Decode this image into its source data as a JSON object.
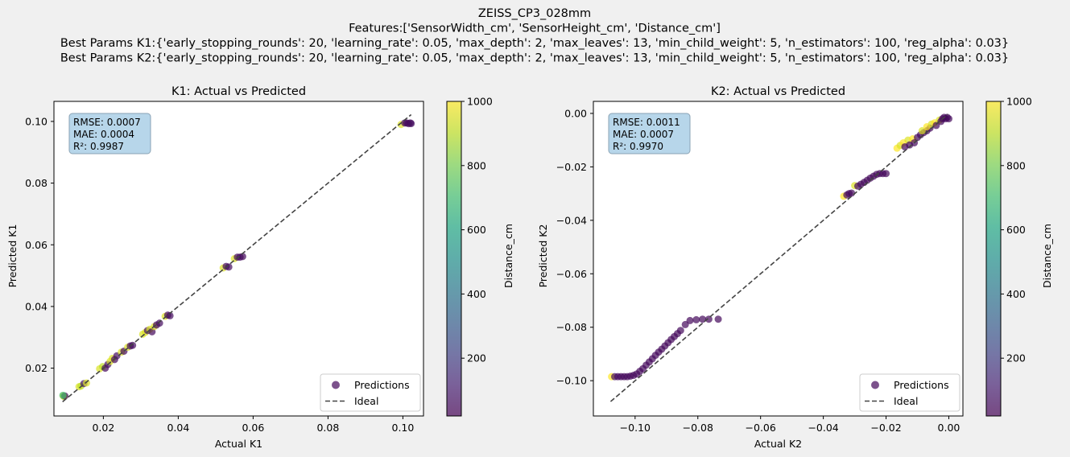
{
  "figure": {
    "title_lines": [
      "ZEISS_CP3_028mm",
      "Features:['SensorWidth_cm', 'SensorHeight_cm', 'Distance_cm']",
      "Best Params K1:{'early_stopping_rounds': 20, 'learning_rate': 0.05, 'max_depth': 2, 'max_leaves': 13, 'min_child_weight': 5, 'n_estimators': 100, 'reg_alpha': 0.03}",
      "Best Params K2:{'early_stopping_rounds': 20, 'learning_rate': 0.05, 'max_depth': 2, 'max_leaves': 13, 'min_child_weight': 5, 'n_estimators': 100, 'reg_alpha': 0.03}"
    ],
    "colors": {
      "background": "#f0f0f0",
      "axes_face": "#ffffff",
      "ideal_line": "#444444",
      "stats_box_fill": "#b7d6ea",
      "stats_box_edge": "#8aa3b5"
    }
  },
  "chart_data": [
    {
      "type": "scatter",
      "title": "K1: Actual vs Predicted",
      "xlabel": "Actual K1",
      "ylabel": "Predicted K1",
      "xlim": [
        0.0068,
        0.1055
      ],
      "ylim": [
        0.0045,
        0.1065
      ],
      "xticks": [
        0.02,
        0.04,
        0.06,
        0.08,
        0.1
      ],
      "xtick_labels": [
        "0.02",
        "0.04",
        "0.06",
        "0.08",
        "0.10"
      ],
      "yticks": [
        0.02,
        0.04,
        0.06,
        0.08,
        0.1
      ],
      "ytick_labels": [
        "0.02",
        "0.04",
        "0.06",
        "0.08",
        "0.10"
      ],
      "grid": false,
      "legend": {
        "placement": "lower-right",
        "entries": [
          "Predictions",
          "Ideal"
        ]
      },
      "stats": [
        "RMSE: 0.0007",
        "MAE: 0.0004",
        "R²: 0.9987"
      ],
      "ideal_line": {
        "x": [
          0.0091,
          0.1022
        ],
        "y": [
          0.0091,
          0.1022
        ]
      },
      "colorbar": {
        "label": "Distance_cm",
        "range": [
          20,
          1000
        ],
        "ticks": [
          200,
          400,
          600,
          800,
          1000
        ],
        "tick_labels": [
          "200",
          "400",
          "600",
          "800",
          "1000"
        ],
        "colormap": "viridis"
      },
      "series": [
        {
          "name": "Predictions",
          "marker_alpha": 0.7,
          "points": [
            {
              "x": 0.0093,
              "y": 0.011,
              "c": 1000
            },
            {
              "x": 0.0095,
              "y": 0.0108,
              "c": 900
            },
            {
              "x": 0.0097,
              "y": 0.011,
              "c": 60
            },
            {
              "x": 0.0092,
              "y": 0.0112,
              "c": 700
            },
            {
              "x": 0.0135,
              "y": 0.014,
              "c": 950
            },
            {
              "x": 0.014,
              "y": 0.0142,
              "c": 900
            },
            {
              "x": 0.0148,
              "y": 0.015,
              "c": 80
            },
            {
              "x": 0.0155,
              "y": 0.0152,
              "c": 950
            },
            {
              "x": 0.019,
              "y": 0.0198,
              "c": 950
            },
            {
              "x": 0.0198,
              "y": 0.0205,
              "c": 900
            },
            {
              "x": 0.0205,
              "y": 0.02,
              "c": 40
            },
            {
              "x": 0.0212,
              "y": 0.0212,
              "c": 50
            },
            {
              "x": 0.0218,
              "y": 0.0222,
              "c": 950
            },
            {
              "x": 0.0224,
              "y": 0.0232,
              "c": 950
            },
            {
              "x": 0.023,
              "y": 0.0228,
              "c": 40
            },
            {
              "x": 0.0236,
              "y": 0.024,
              "c": 60
            },
            {
              "x": 0.0248,
              "y": 0.0252,
              "c": 950
            },
            {
              "x": 0.0255,
              "y": 0.0255,
              "c": 40
            },
            {
              "x": 0.0265,
              "y": 0.0268,
              "c": 950
            },
            {
              "x": 0.0272,
              "y": 0.0272,
              "c": 40
            },
            {
              "x": 0.0278,
              "y": 0.0274,
              "c": 50
            },
            {
              "x": 0.0305,
              "y": 0.031,
              "c": 950
            },
            {
              "x": 0.0312,
              "y": 0.0316,
              "c": 950
            },
            {
              "x": 0.0318,
              "y": 0.0322,
              "c": 60
            },
            {
              "x": 0.0324,
              "y": 0.0326,
              "c": 950
            },
            {
              "x": 0.033,
              "y": 0.0318,
              "c": 40
            },
            {
              "x": 0.0336,
              "y": 0.0335,
              "c": 950
            },
            {
              "x": 0.0342,
              "y": 0.034,
              "c": 40
            },
            {
              "x": 0.035,
              "y": 0.0346,
              "c": 50
            },
            {
              "x": 0.0365,
              "y": 0.0368,
              "c": 950
            },
            {
              "x": 0.0372,
              "y": 0.0372,
              "c": 40
            },
            {
              "x": 0.0378,
              "y": 0.037,
              "c": 50
            },
            {
              "x": 0.052,
              "y": 0.0525,
              "c": 950
            },
            {
              "x": 0.0528,
              "y": 0.053,
              "c": 40
            },
            {
              "x": 0.0535,
              "y": 0.0528,
              "c": 50
            },
            {
              "x": 0.055,
              "y": 0.0555,
              "c": 950
            },
            {
              "x": 0.0558,
              "y": 0.056,
              "c": 40
            },
            {
              "x": 0.0565,
              "y": 0.056,
              "c": 50
            },
            {
              "x": 0.0572,
              "y": 0.0562,
              "c": 40
            },
            {
              "x": 0.0995,
              "y": 0.099,
              "c": 950
            },
            {
              "x": 0.1005,
              "y": 0.0995,
              "c": 40
            },
            {
              "x": 0.101,
              "y": 0.0995,
              "c": 40
            },
            {
              "x": 0.1015,
              "y": 0.0993,
              "c": 50
            },
            {
              "x": 0.102,
              "y": 0.0995,
              "c": 40
            },
            {
              "x": 0.1022,
              "y": 0.0993,
              "c": 60
            }
          ]
        }
      ]
    },
    {
      "type": "scatter",
      "title": "K2: Actual vs Predicted",
      "xlabel": "Actual K2",
      "ylabel": "Predicted K2",
      "xlim": [
        -0.1133,
        0.0045
      ],
      "ylim": [
        -0.1132,
        0.0045
      ],
      "xticks": [
        -0.1,
        -0.08,
        -0.06,
        -0.04,
        -0.02,
        0.0
      ],
      "xtick_labels": [
        "−0.10",
        "−0.08",
        "−0.06",
        "−0.04",
        "−0.02",
        "0.00"
      ],
      "yticks": [
        -0.1,
        -0.08,
        -0.06,
        -0.04,
        -0.02,
        0.0
      ],
      "ytick_labels": [
        "−0.10",
        "−0.08",
        "−0.06",
        "−0.04",
        "−0.02",
        "0.00"
      ],
      "grid": false,
      "legend": {
        "placement": "lower-right",
        "entries": [
          "Predictions",
          "Ideal"
        ]
      },
      "stats": [
        "RMSE: 0.0011",
        "MAE: 0.0007",
        "R²: 0.9970"
      ],
      "ideal_line": {
        "x": [
          -0.1078,
          -0.0004
        ],
        "y": [
          -0.1078,
          -0.0004
        ]
      },
      "colorbar": {
        "label": "Distance_cm",
        "range": [
          20,
          1000
        ],
        "ticks": [
          200,
          400,
          600,
          800,
          1000
        ],
        "tick_labels": [
          "200",
          "400",
          "600",
          "800",
          "1000"
        ],
        "colormap": "viridis"
      },
      "series": [
        {
          "name": "Predictions",
          "marker_alpha": 0.7,
          "points": [
            {
              "x": -0.1075,
              "y": -0.0985,
              "c": 1000
            },
            {
              "x": -0.1065,
              "y": -0.0985,
              "c": 60
            },
            {
              "x": -0.1055,
              "y": -0.0985,
              "c": 40
            },
            {
              "x": -0.1045,
              "y": -0.0985,
              "c": 40
            },
            {
              "x": -0.1035,
              "y": -0.0985,
              "c": 40
            },
            {
              "x": -0.1025,
              "y": -0.0985,
              "c": 40
            },
            {
              "x": -0.1015,
              "y": -0.0983,
              "c": 40
            },
            {
              "x": -0.1005,
              "y": -0.098,
              "c": 40
            },
            {
              "x": -0.0995,
              "y": -0.0975,
              "c": 40
            },
            {
              "x": -0.0985,
              "y": -0.0965,
              "c": 40
            },
            {
              "x": -0.0975,
              "y": -0.0955,
              "c": 40
            },
            {
              "x": -0.0965,
              "y": -0.0942,
              "c": 40
            },
            {
              "x": -0.0955,
              "y": -0.093,
              "c": 40
            },
            {
              "x": -0.0945,
              "y": -0.0918,
              "c": 40
            },
            {
              "x": -0.0935,
              "y": -0.0905,
              "c": 40
            },
            {
              "x": -0.0925,
              "y": -0.0893,
              "c": 40
            },
            {
              "x": -0.0915,
              "y": -0.0882,
              "c": 40
            },
            {
              "x": -0.0905,
              "y": -0.087,
              "c": 40
            },
            {
              "x": -0.0895,
              "y": -0.0858,
              "c": 40
            },
            {
              "x": -0.0885,
              "y": -0.0846,
              "c": 40
            },
            {
              "x": -0.0875,
              "y": -0.0835,
              "c": 40
            },
            {
              "x": -0.0865,
              "y": -0.0824,
              "c": 40
            },
            {
              "x": -0.0855,
              "y": -0.0812,
              "c": 40
            },
            {
              "x": -0.084,
              "y": -0.079,
              "c": 40
            },
            {
              "x": -0.0825,
              "y": -0.0775,
              "c": 40
            },
            {
              "x": -0.0805,
              "y": -0.0772,
              "c": 40
            },
            {
              "x": -0.0785,
              "y": -0.077,
              "c": 40
            },
            {
              "x": -0.0765,
              "y": -0.077,
              "c": 40
            },
            {
              "x": -0.0735,
              "y": -0.077,
              "c": 40
            },
            {
              "x": -0.0335,
              "y": -0.031,
              "c": 1000
            },
            {
              "x": -0.0325,
              "y": -0.0305,
              "c": 40
            },
            {
              "x": -0.0318,
              "y": -0.03,
              "c": 40
            },
            {
              "x": -0.031,
              "y": -0.0298,
              "c": 40
            },
            {
              "x": -0.03,
              "y": -0.027,
              "c": 950
            },
            {
              "x": -0.029,
              "y": -0.0272,
              "c": 40
            },
            {
              "x": -0.028,
              "y": -0.0265,
              "c": 40
            },
            {
              "x": -0.027,
              "y": -0.0258,
              "c": 40
            },
            {
              "x": -0.026,
              "y": -0.025,
              "c": 40
            },
            {
              "x": -0.025,
              "y": -0.0242,
              "c": 40
            },
            {
              "x": -0.024,
              "y": -0.0235,
              "c": 40
            },
            {
              "x": -0.023,
              "y": -0.0228,
              "c": 40
            },
            {
              "x": -0.022,
              "y": -0.0225,
              "c": 40
            },
            {
              "x": -0.021,
              "y": -0.0225,
              "c": 40
            },
            {
              "x": -0.02,
              "y": -0.0225,
              "c": 40
            },
            {
              "x": -0.0165,
              "y": -0.013,
              "c": 1000
            },
            {
              "x": -0.0155,
              "y": -0.012,
              "c": 950
            },
            {
              "x": -0.0145,
              "y": -0.011,
              "c": 1000
            },
            {
              "x": -0.014,
              "y": -0.0125,
              "c": 40
            },
            {
              "x": -0.013,
              "y": -0.01,
              "c": 950
            },
            {
              "x": -0.0125,
              "y": -0.0118,
              "c": 40
            },
            {
              "x": -0.0115,
              "y": -0.0095,
              "c": 1000
            },
            {
              "x": -0.011,
              "y": -0.011,
              "c": 40
            },
            {
              "x": -0.01,
              "y": -0.009,
              "c": 40
            },
            {
              "x": -0.009,
              "y": -0.008,
              "c": 40
            },
            {
              "x": -0.008,
              "y": -0.0072,
              "c": 40
            },
            {
              "x": -0.007,
              "y": -0.0065,
              "c": 40
            },
            {
              "x": -0.006,
              "y": -0.0055,
              "c": 40
            },
            {
              "x": -0.0085,
              "y": -0.0065,
              "c": 950
            },
            {
              "x": -0.007,
              "y": -0.005,
              "c": 1000
            },
            {
              "x": -0.0055,
              "y": -0.004,
              "c": 950
            },
            {
              "x": -0.0045,
              "y": -0.0035,
              "c": 1000
            },
            {
              "x": -0.004,
              "y": -0.0045,
              "c": 40
            },
            {
              "x": -0.003,
              "y": -0.0025,
              "c": 950
            },
            {
              "x": -0.002,
              "y": -0.002,
              "c": 40
            },
            {
              "x": -0.0015,
              "y": -0.0015,
              "c": 40
            },
            {
              "x": -0.001,
              "y": -0.002,
              "c": 40
            },
            {
              "x": -0.0005,
              "y": -0.0015,
              "c": 40
            },
            {
              "x": 0.0,
              "y": -0.002,
              "c": 40
            },
            {
              "x": -0.0025,
              "y": -0.003,
              "c": 40
            }
          ]
        }
      ]
    }
  ]
}
